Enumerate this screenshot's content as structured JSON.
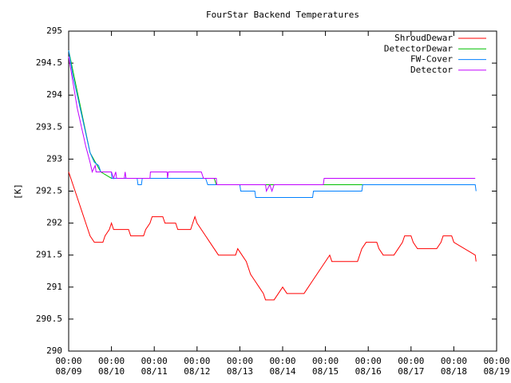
{
  "chart_data": {
    "type": "line",
    "title": "FourStar Backend Temperatures",
    "y_label": "[K]",
    "xlim": [
      0,
      10
    ],
    "ylim": [
      290,
      295
    ],
    "grid": false,
    "legend": "top-right",
    "yticks": [
      290,
      290.5,
      291,
      291.5,
      292,
      292.5,
      293,
      293.5,
      294,
      294.5,
      295
    ],
    "xticks": [
      {
        "value": 0,
        "label": "00:00\n08/09"
      },
      {
        "value": 1,
        "label": "00:00\n08/10"
      },
      {
        "value": 2,
        "label": "00:00\n08/11"
      },
      {
        "value": 3,
        "label": "00:00\n08/12"
      },
      {
        "value": 4,
        "label": "00:00\n08/13"
      },
      {
        "value": 5,
        "label": "00:00\n08/14"
      },
      {
        "value": 6,
        "label": "00:00\n08/15"
      },
      {
        "value": 7,
        "label": "00:00\n08/16"
      },
      {
        "value": 8,
        "label": "00:00\n08/17"
      },
      {
        "value": 9,
        "label": "00:00\n08/18"
      },
      {
        "value": 10,
        "label": "00:00\n08/19"
      }
    ],
    "series": [
      {
        "name": "ShroudDewar",
        "color": "#ff0000",
        "x": [
          0,
          0.1,
          0.2,
          0.3,
          0.4,
          0.5,
          0.6,
          0.8,
          0.85,
          0.95,
          1.0,
          1.05,
          1.4,
          1.45,
          1.75,
          1.8,
          1.9,
          1.95,
          2.2,
          2.25,
          2.5,
          2.55,
          2.85,
          2.9,
          2.95,
          3.0,
          3.1,
          3.2,
          3.3,
          3.4,
          3.5,
          3.9,
          3.95,
          4.05,
          4.15,
          4.25,
          4.35,
          4.45,
          4.55,
          4.6,
          4.8,
          4.9,
          5.0,
          5.1,
          5.5,
          5.6,
          5.7,
          5.8,
          5.9,
          6.0,
          6.1,
          6.15,
          6.75,
          6.85,
          6.95,
          7.2,
          7.25,
          7.35,
          7.6,
          7.7,
          7.8,
          7.85,
          8.0,
          8.05,
          8.15,
          8.6,
          8.7,
          8.75,
          8.95,
          9.0,
          9.5,
          9.52
        ],
        "values": [
          292.8,
          292.6,
          292.4,
          292.2,
          292.0,
          291.8,
          291.7,
          291.7,
          291.8,
          291.9,
          292.0,
          291.9,
          291.9,
          291.8,
          291.8,
          291.9,
          292.0,
          292.1,
          292.1,
          292.0,
          292.0,
          291.9,
          291.9,
          292.0,
          292.1,
          292.0,
          291.9,
          291.8,
          291.7,
          291.6,
          291.5,
          291.5,
          291.6,
          291.5,
          291.4,
          291.2,
          291.1,
          291.0,
          290.9,
          290.8,
          290.8,
          290.9,
          291.0,
          290.9,
          290.9,
          291.0,
          291.1,
          291.2,
          291.3,
          291.4,
          291.5,
          291.4,
          291.4,
          291.6,
          291.7,
          291.7,
          291.6,
          291.5,
          291.5,
          291.6,
          291.7,
          291.8,
          291.8,
          291.7,
          291.6,
          291.6,
          291.7,
          291.8,
          291.8,
          291.7,
          291.5,
          291.4
        ]
      },
      {
        "name": "DetectorDewar",
        "color": "#00c000",
        "x": [
          0,
          0.5,
          0.75,
          1.0,
          3.4,
          3.45,
          9.5
        ],
        "values": [
          294.7,
          293.1,
          292.8,
          292.7,
          292.7,
          292.6,
          292.6
        ]
      },
      {
        "name": "FW-Cover",
        "color": "#0080ff",
        "x": [
          0,
          0.1,
          0.2,
          0.3,
          0.4,
          0.5,
          0.6,
          0.7,
          0.75,
          1.0,
          1.01,
          1.6,
          1.62,
          1.7,
          1.72,
          3.2,
          3.25,
          4.0,
          4.02,
          4.35,
          4.37,
          5.7,
          5.72,
          6.85,
          6.87,
          9.5,
          9.52
        ],
        "values": [
          294.7,
          294.3,
          294.0,
          293.7,
          293.4,
          293.1,
          292.95,
          292.9,
          292.8,
          292.8,
          292.7,
          292.7,
          292.6,
          292.6,
          292.7,
          292.7,
          292.6,
          292.6,
          292.5,
          292.5,
          292.4,
          292.4,
          292.5,
          292.5,
          292.6,
          292.6,
          292.5
        ]
      },
      {
        "name": "Detector",
        "color": "#c000ff",
        "x": [
          0,
          0.1,
          0.2,
          0.3,
          0.4,
          0.5,
          0.55,
          0.62,
          0.64,
          0.66,
          1.0,
          1.05,
          1.1,
          1.12,
          1.3,
          1.32,
          1.34,
          1.9,
          1.91,
          2.3,
          2.31,
          2.33,
          3.1,
          3.15,
          3.45,
          3.46,
          4.6,
          4.62,
          4.7,
          4.75,
          4.8,
          5.95,
          5.97,
          9.5
        ],
        "values": [
          294.6,
          294.2,
          293.8,
          293.5,
          293.2,
          292.95,
          292.8,
          292.9,
          292.8,
          292.8,
          292.8,
          292.7,
          292.8,
          292.7,
          292.7,
          292.8,
          292.7,
          292.7,
          292.8,
          292.8,
          292.7,
          292.8,
          292.8,
          292.7,
          292.7,
          292.6,
          292.6,
          292.5,
          292.6,
          292.5,
          292.6,
          292.6,
          292.7,
          292.7
        ]
      }
    ]
  }
}
